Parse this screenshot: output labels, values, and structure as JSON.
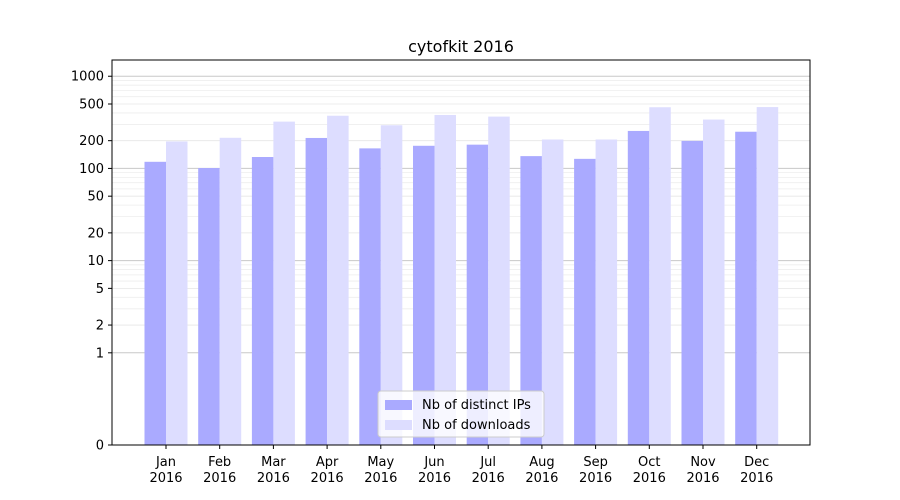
{
  "chart_data": {
    "type": "bar",
    "title": "cytofkit 2016",
    "categories": [
      "Jan\n2016",
      "Feb\n2016",
      "Mar\n2016",
      "Apr\n2016",
      "May\n2016",
      "Jun\n2016",
      "Jul\n2016",
      "Aug\n2016",
      "Sep\n2016",
      "Oct\n2016",
      "Nov\n2016",
      "Dec\n2016"
    ],
    "series": [
      {
        "name": "Nb of distinct IPs",
        "color": "#aaaaff",
        "values": [
          118,
          101,
          133,
          214,
          165,
          176,
          181,
          136,
          127,
          255,
          199,
          250
        ]
      },
      {
        "name": "Nb of downloads",
        "color": "#ddddff",
        "values": [
          196,
          215,
          322,
          373,
          294,
          380,
          365,
          206,
          206,
          461,
          339,
          463
        ]
      }
    ],
    "y_scale": "symlog",
    "y_ticks": [
      0,
      1,
      2,
      5,
      10,
      20,
      50,
      100,
      200,
      500,
      1000
    ],
    "y_tick_labels": [
      "0",
      "1",
      "2",
      "5",
      "10",
      "20",
      "50",
      "100",
      "200",
      "500",
      "1000"
    ],
    "ylim": [
      0,
      1500
    ],
    "grid": true,
    "legend_position": "lower-center"
  }
}
